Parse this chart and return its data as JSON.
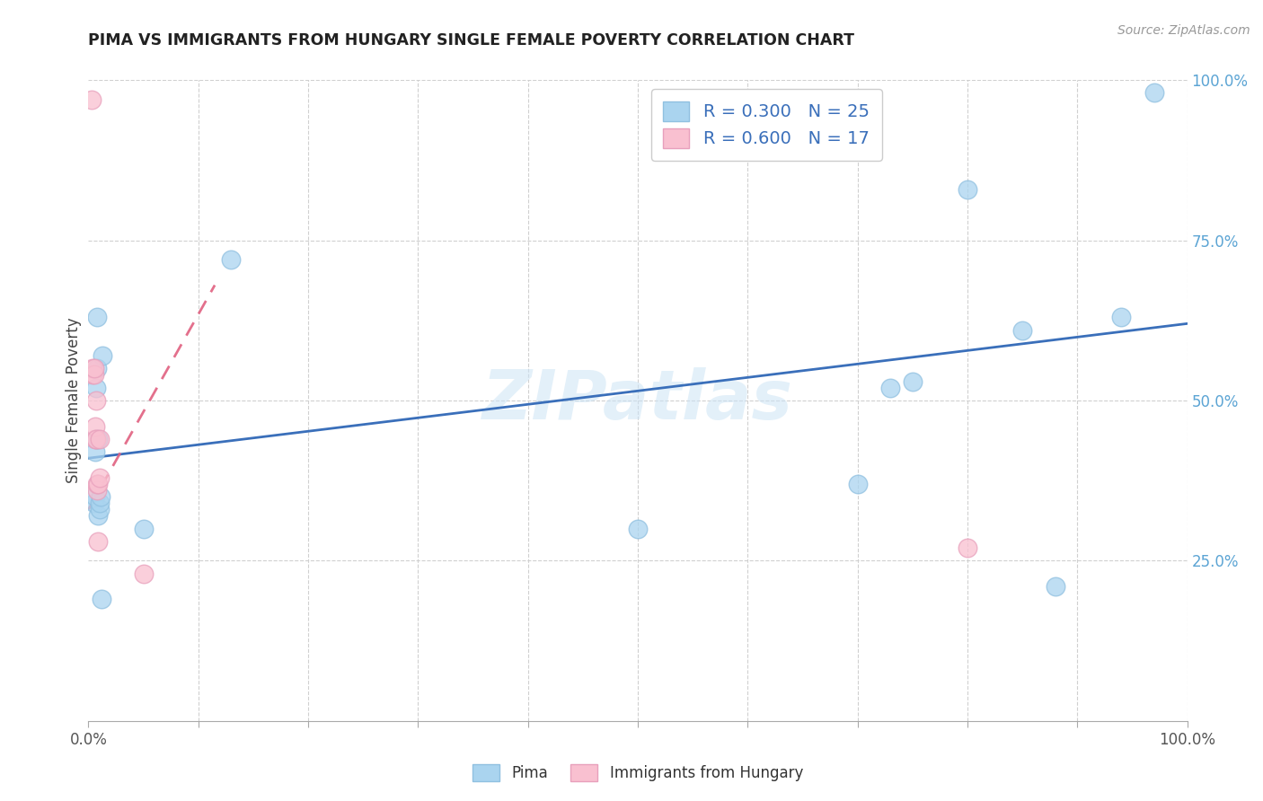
{
  "title": "PIMA VS IMMIGRANTS FROM HUNGARY SINGLE FEMALE POVERTY CORRELATION CHART",
  "source": "Source: ZipAtlas.com",
  "ylabel": "Single Female Poverty",
  "legend_label1": "Pima",
  "legend_label2": "Immigrants from Hungary",
  "legend_R1": "R = 0.300",
  "legend_N1": "N = 25",
  "legend_R2": "R = 0.600",
  "legend_N2": "N = 17",
  "xlim": [
    0.0,
    1.0
  ],
  "ylim": [
    0.0,
    1.0
  ],
  "xtick_vals": [
    0.0,
    0.1,
    0.2,
    0.3,
    0.4,
    0.5,
    0.6,
    0.7,
    0.8,
    0.9,
    1.0
  ],
  "ytick_vals": [
    0.0,
    0.25,
    0.5,
    0.75,
    1.0
  ],
  "ytick_labels_right": [
    "",
    "25.0%",
    "50.0%",
    "75.0%",
    "100.0%"
  ],
  "color_blue": "#7ec8e3",
  "color_blue_fill": "#aad4ef",
  "color_pink": "#f9c0d0",
  "color_pink_fill": "#f9c0d0",
  "color_blue_line": "#3a6fba",
  "color_pink_line": "#e06080",
  "watermark": "ZIPatlas",
  "pima_x": [
    0.005,
    0.006,
    0.006,
    0.007,
    0.007,
    0.008,
    0.008,
    0.009,
    0.009,
    0.01,
    0.01,
    0.011,
    0.012,
    0.013,
    0.05,
    0.13,
    0.5,
    0.7,
    0.73,
    0.75,
    0.8,
    0.85,
    0.88,
    0.94,
    0.97
  ],
  "pima_y": [
    0.34,
    0.35,
    0.42,
    0.44,
    0.52,
    0.55,
    0.63,
    0.44,
    0.32,
    0.33,
    0.34,
    0.35,
    0.19,
    0.57,
    0.3,
    0.72,
    0.3,
    0.37,
    0.52,
    0.53,
    0.83,
    0.61,
    0.21,
    0.63,
    0.98
  ],
  "hungary_x": [
    0.003,
    0.004,
    0.004,
    0.005,
    0.005,
    0.006,
    0.006,
    0.007,
    0.007,
    0.008,
    0.008,
    0.009,
    0.009,
    0.01,
    0.01,
    0.05,
    0.8
  ],
  "hungary_y": [
    0.97,
    0.54,
    0.55,
    0.54,
    0.55,
    0.44,
    0.46,
    0.5,
    0.44,
    0.36,
    0.37,
    0.28,
    0.37,
    0.38,
    0.44,
    0.23,
    0.27
  ],
  "blue_line_x": [
    0.0,
    1.0
  ],
  "blue_line_y": [
    0.41,
    0.62
  ],
  "pink_line_x": [
    0.0,
    0.115
  ],
  "pink_line_y": [
    0.33,
    0.68
  ]
}
